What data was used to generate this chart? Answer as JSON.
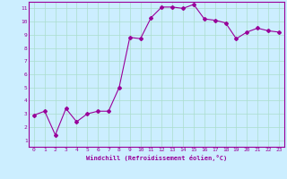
{
  "x": [
    0,
    1,
    2,
    3,
    4,
    5,
    6,
    7,
    8,
    9,
    10,
    11,
    12,
    13,
    14,
    15,
    16,
    17,
    18,
    19,
    20,
    21,
    22,
    23
  ],
  "y": [
    2.9,
    3.2,
    1.4,
    3.4,
    2.4,
    3.0,
    3.2,
    3.2,
    5.0,
    8.8,
    8.7,
    10.3,
    11.1,
    11.1,
    11.0,
    11.3,
    10.2,
    10.1,
    9.9,
    8.7,
    9.2,
    9.5,
    9.3,
    9.2
  ],
  "line_color": "#990099",
  "marker": "D",
  "marker_size": 2.0,
  "background_color": "#cceeff",
  "grid_color": "#aaddcc",
  "xlabel": "Windchill (Refroidissement éolien,°C)",
  "xlabel_color": "#990099",
  "tick_color": "#990099",
  "xlim": [
    -0.5,
    23.5
  ],
  "ylim": [
    0.5,
    11.5
  ],
  "xticks": [
    0,
    1,
    2,
    3,
    4,
    5,
    6,
    7,
    8,
    9,
    10,
    11,
    12,
    13,
    14,
    15,
    16,
    17,
    18,
    19,
    20,
    21,
    22,
    23
  ],
  "yticks": [
    1,
    2,
    3,
    4,
    5,
    6,
    7,
    8,
    9,
    10,
    11
  ]
}
